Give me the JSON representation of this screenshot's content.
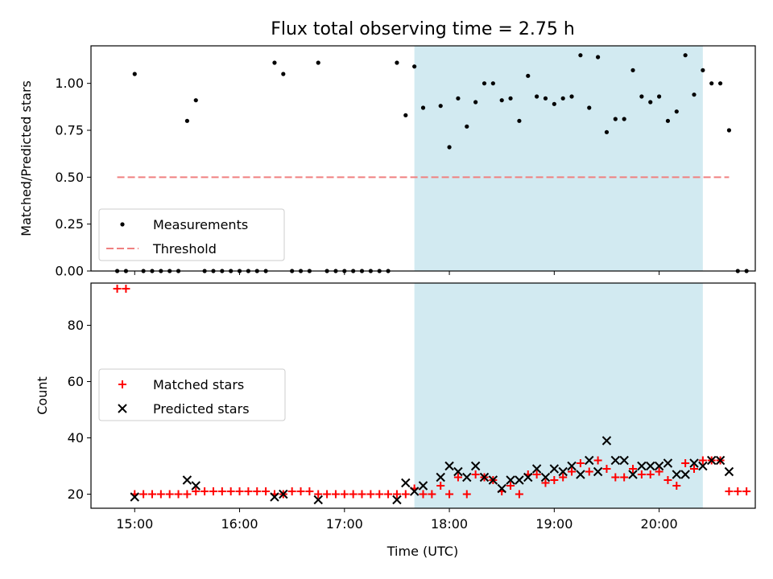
{
  "title": "Flux total observing time = 2.75 h",
  "xlabel": "Time (UTC)",
  "chart_data": [
    {
      "type": "scatter",
      "ylabel": "Matched/Predicted stars",
      "xlim": [
        "14:35",
        "20:55"
      ],
      "ylim": [
        0,
        1.2
      ],
      "yticks": [
        0.0,
        0.25,
        0.5,
        0.75,
        1.0
      ],
      "ytick_labels": [
        "0.00",
        "0.25",
        "0.50",
        "0.75",
        "1.00"
      ],
      "shaded_span": {
        "from": "17:40",
        "to": "20:25",
        "color": "#add8e6"
      },
      "legend": {
        "loc": "lower-left",
        "entries": [
          "Measurements",
          "Threshold"
        ]
      },
      "threshold": {
        "name": "Threshold",
        "y": 0.5,
        "x": [
          "14:50",
          "20:40"
        ],
        "color": "#f08080",
        "style": "dashed"
      },
      "series": [
        {
          "name": "Measurements",
          "marker": "dot",
          "color": "#000000",
          "points": [
            [
              "14:50",
              0
            ],
            [
              "14:55",
              0
            ],
            [
              "15:00",
              1.05
            ],
            [
              "15:05",
              0
            ],
            [
              "15:10",
              0
            ],
            [
              "15:15",
              0
            ],
            [
              "15:20",
              0
            ],
            [
              "15:25",
              0
            ],
            [
              "15:30",
              0.8
            ],
            [
              "15:35",
              0.91
            ],
            [
              "15:40",
              0
            ],
            [
              "15:45",
              0
            ],
            [
              "15:50",
              0
            ],
            [
              "15:55",
              0
            ],
            [
              "16:00",
              0
            ],
            [
              "16:05",
              0
            ],
            [
              "16:10",
              0
            ],
            [
              "16:15",
              0
            ],
            [
              "16:20",
              1.11
            ],
            [
              "16:25",
              1.05
            ],
            [
              "16:30",
              0
            ],
            [
              "16:35",
              0
            ],
            [
              "16:40",
              0
            ],
            [
              "16:45",
              1.11
            ],
            [
              "16:50",
              0
            ],
            [
              "16:55",
              0
            ],
            [
              "17:00",
              0
            ],
            [
              "17:05",
              0
            ],
            [
              "17:10",
              0
            ],
            [
              "17:15",
              0
            ],
            [
              "17:20",
              0
            ],
            [
              "17:25",
              0
            ],
            [
              "17:30",
              1.11
            ],
            [
              "17:35",
              0.83
            ],
            [
              "17:40",
              1.09
            ],
            [
              "17:45",
              0.87
            ],
            [
              "17:55",
              0.88
            ],
            [
              "18:00",
              0.66
            ],
            [
              "18:05",
              0.92
            ],
            [
              "18:10",
              0.77
            ],
            [
              "18:15",
              0.9
            ],
            [
              "18:20",
              1.0
            ],
            [
              "18:25",
              1.0
            ],
            [
              "18:30",
              0.91
            ],
            [
              "18:35",
              0.92
            ],
            [
              "18:40",
              0.8
            ],
            [
              "18:45",
              1.04
            ],
            [
              "18:50",
              0.93
            ],
            [
              "18:55",
              0.92
            ],
            [
              "19:00",
              0.89
            ],
            [
              "19:05",
              0.92
            ],
            [
              "19:10",
              0.93
            ],
            [
              "19:15",
              1.15
            ],
            [
              "19:20",
              0.87
            ],
            [
              "19:25",
              1.14
            ],
            [
              "19:30",
              0.74
            ],
            [
              "19:35",
              0.81
            ],
            [
              "19:40",
              0.81
            ],
            [
              "19:45",
              1.07
            ],
            [
              "19:50",
              0.93
            ],
            [
              "19:55",
              0.9
            ],
            [
              "20:00",
              0.93
            ],
            [
              "20:05",
              0.8
            ],
            [
              "20:10",
              0.85
            ],
            [
              "20:15",
              1.15
            ],
            [
              "20:20",
              0.94
            ],
            [
              "20:25",
              1.07
            ],
            [
              "20:30",
              1.0
            ],
            [
              "20:35",
              1.0
            ],
            [
              "20:40",
              0.75
            ],
            [
              "20:45",
              0
            ],
            [
              "20:50",
              0
            ]
          ]
        }
      ]
    },
    {
      "type": "scatter",
      "ylabel": "Count",
      "xlim": [
        "14:35",
        "20:55"
      ],
      "ylim": [
        15,
        95
      ],
      "yticks": [
        20,
        40,
        60,
        80
      ],
      "ytick_labels": [
        "20",
        "40",
        "60",
        "80"
      ],
      "xticks": [
        "15:00",
        "16:00",
        "17:00",
        "18:00",
        "19:00",
        "20:00"
      ],
      "xtick_labels": [
        "15:00",
        "16:00",
        "17:00",
        "18:00",
        "19:00",
        "20:00"
      ],
      "shaded_span": {
        "from": "17:40",
        "to": "20:25",
        "color": "#add8e6"
      },
      "legend": {
        "loc": "center-left",
        "entries": [
          "Matched stars",
          "Predicted stars"
        ]
      },
      "series": [
        {
          "name": "Matched stars",
          "marker": "plus",
          "color": "#ff0000",
          "points": [
            [
              "14:50",
              93
            ],
            [
              "14:55",
              93
            ],
            [
              "15:00",
              20
            ],
            [
              "15:05",
              20
            ],
            [
              "15:10",
              20
            ],
            [
              "15:15",
              20
            ],
            [
              "15:20",
              20
            ],
            [
              "15:25",
              20
            ],
            [
              "15:30",
              20
            ],
            [
              "15:35",
              21
            ],
            [
              "15:40",
              21
            ],
            [
              "15:45",
              21
            ],
            [
              "15:50",
              21
            ],
            [
              "15:55",
              21
            ],
            [
              "16:00",
              21
            ],
            [
              "16:05",
              21
            ],
            [
              "16:10",
              21
            ],
            [
              "16:15",
              21
            ],
            [
              "16:20",
              20
            ],
            [
              "16:25",
              20
            ],
            [
              "16:30",
              21
            ],
            [
              "16:35",
              21
            ],
            [
              "16:40",
              21
            ],
            [
              "16:45",
              20
            ],
            [
              "16:50",
              20
            ],
            [
              "16:55",
              20
            ],
            [
              "17:00",
              20
            ],
            [
              "17:05",
              20
            ],
            [
              "17:10",
              20
            ],
            [
              "17:15",
              20
            ],
            [
              "17:20",
              20
            ],
            [
              "17:25",
              20
            ],
            [
              "17:30",
              20
            ],
            [
              "17:35",
              20
            ],
            [
              "17:40",
              22
            ],
            [
              "17:45",
              20
            ],
            [
              "17:50",
              20
            ],
            [
              "17:55",
              23
            ],
            [
              "18:00",
              20
            ],
            [
              "18:05",
              26
            ],
            [
              "18:10",
              20
            ],
            [
              "18:15",
              27
            ],
            [
              "18:20",
              26
            ],
            [
              "18:25",
              25
            ],
            [
              "18:30",
              21
            ],
            [
              "18:35",
              23
            ],
            [
              "18:40",
              20
            ],
            [
              "18:45",
              27
            ],
            [
              "18:50",
              27
            ],
            [
              "18:55",
              24
            ],
            [
              "19:00",
              25
            ],
            [
              "19:05",
              26
            ],
            [
              "19:10",
              28
            ],
            [
              "19:15",
              31
            ],
            [
              "19:20",
              28
            ],
            [
              "19:25",
              32
            ],
            [
              "19:30",
              29
            ],
            [
              "19:35",
              26
            ],
            [
              "19:40",
              26
            ],
            [
              "19:45",
              29
            ],
            [
              "19:50",
              27
            ],
            [
              "19:55",
              27
            ],
            [
              "20:00",
              28
            ],
            [
              "20:05",
              25
            ],
            [
              "20:10",
              23
            ],
            [
              "20:15",
              31
            ],
            [
              "20:20",
              29
            ],
            [
              "20:25",
              32
            ],
            [
              "20:30",
              32
            ],
            [
              "20:35",
              32
            ],
            [
              "20:40",
              21
            ],
            [
              "20:45",
              21
            ],
            [
              "20:50",
              21
            ]
          ]
        },
        {
          "name": "Predicted stars",
          "marker": "x",
          "color": "#000000",
          "points": [
            [
              "15:00",
              19
            ],
            [
              "15:30",
              25
            ],
            [
              "15:35",
              23
            ],
            [
              "16:20",
              19
            ],
            [
              "16:25",
              20
            ],
            [
              "16:45",
              18
            ],
            [
              "17:30",
              18
            ],
            [
              "17:35",
              24
            ],
            [
              "17:40",
              21
            ],
            [
              "17:45",
              23
            ],
            [
              "17:55",
              26
            ],
            [
              "18:00",
              30
            ],
            [
              "18:05",
              28
            ],
            [
              "18:10",
              26
            ],
            [
              "18:15",
              30
            ],
            [
              "18:20",
              26
            ],
            [
              "18:25",
              25
            ],
            [
              "18:30",
              22
            ],
            [
              "18:35",
              25
            ],
            [
              "18:40",
              25
            ],
            [
              "18:45",
              26
            ],
            [
              "18:50",
              29
            ],
            [
              "18:55",
              26
            ],
            [
              "19:00",
              29
            ],
            [
              "19:05",
              28
            ],
            [
              "19:10",
              30
            ],
            [
              "19:15",
              27
            ],
            [
              "19:20",
              32
            ],
            [
              "19:25",
              28
            ],
            [
              "19:30",
              39
            ],
            [
              "19:35",
              32
            ],
            [
              "19:40",
              32
            ],
            [
              "19:45",
              27
            ],
            [
              "19:50",
              30
            ],
            [
              "19:55",
              30
            ],
            [
              "20:00",
              30
            ],
            [
              "20:05",
              31
            ],
            [
              "20:10",
              27
            ],
            [
              "20:15",
              27
            ],
            [
              "20:20",
              31
            ],
            [
              "20:25",
              30
            ],
            [
              "20:30",
              32
            ],
            [
              "20:35",
              32
            ],
            [
              "20:40",
              28
            ]
          ]
        }
      ]
    }
  ]
}
